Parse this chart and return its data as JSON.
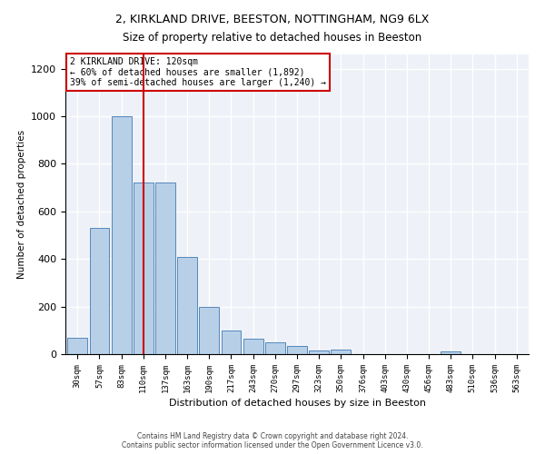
{
  "title_line1": "2, KIRKLAND DRIVE, BEESTON, NOTTINGHAM, NG9 6LX",
  "title_line2": "Size of property relative to detached houses in Beeston",
  "xlabel": "Distribution of detached houses by size in Beeston",
  "ylabel": "Number of detached properties",
  "footer": "Contains HM Land Registry data © Crown copyright and database right 2024.\nContains public sector information licensed under the Open Government Licence v3.0.",
  "bar_color": "#b8cfe8",
  "bar_edge_color": "#5588bb",
  "vline_color": "#cc0000",
  "vline_index": 3,
  "annotation_text": "2 KIRKLAND DRIVE: 120sqm\n← 60% of detached houses are smaller (1,892)\n39% of semi-detached houses are larger (1,240) →",
  "categories": [
    "30sqm",
    "57sqm",
    "83sqm",
    "110sqm",
    "137sqm",
    "163sqm",
    "190sqm",
    "217sqm",
    "243sqm",
    "270sqm",
    "297sqm",
    "323sqm",
    "350sqm",
    "376sqm",
    "403sqm",
    "430sqm",
    "456sqm",
    "483sqm",
    "510sqm",
    "536sqm",
    "563sqm"
  ],
  "values": [
    70,
    530,
    1000,
    720,
    720,
    410,
    200,
    100,
    65,
    48,
    33,
    17,
    18,
    0,
    0,
    0,
    0,
    10,
    0,
    0,
    0
  ],
  "ylim": [
    0,
    1260
  ],
  "yticks": [
    0,
    200,
    400,
    600,
    800,
    1000,
    1200
  ],
  "background_color": "#eef2f8"
}
